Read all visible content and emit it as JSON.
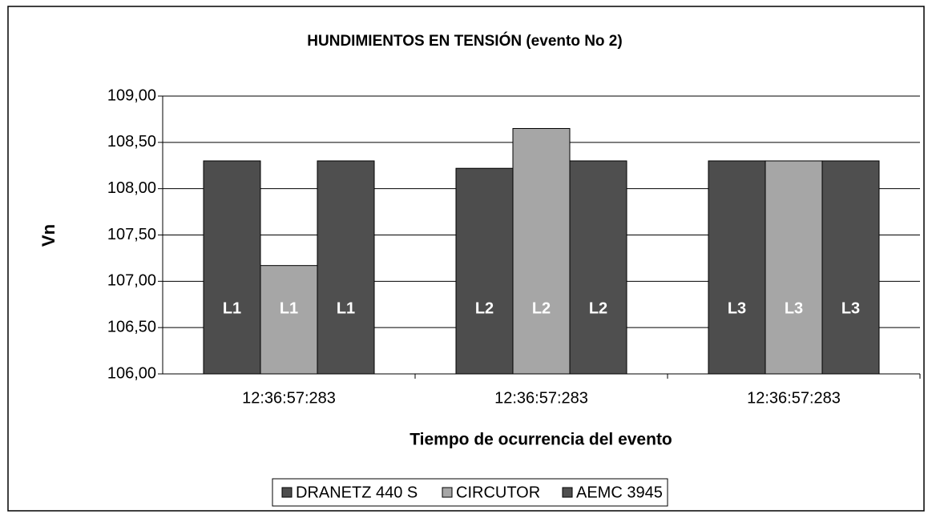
{
  "chart_data": {
    "type": "bar",
    "title": "HUNDIMIENTOS EN TENSIÓN  (evento No 2)",
    "y_label": "Vn",
    "x_label": "Tiempo de ocurrencia del evento",
    "categories": [
      "12:36:57:283",
      "12:36:57:283",
      "12:36:57:283"
    ],
    "series": [
      {
        "name": "DRANETZ 440 S",
        "color": "#4d4d4d",
        "values": [
          108.3,
          108.22,
          108.3
        ],
        "bar_labels": [
          "L1",
          "L2",
          "L3"
        ]
      },
      {
        "name": "CIRCUTOR",
        "color": "#a6a6a6",
        "values": [
          107.17,
          108.65,
          108.3
        ],
        "bar_labels": [
          "L1",
          "L2",
          "L3"
        ]
      },
      {
        "name": "AEMC 3945",
        "color": "#4f4f4f",
        "values": [
          108.3,
          108.3,
          108.3
        ],
        "bar_labels": [
          "L1",
          "L2",
          "L3"
        ]
      }
    ],
    "ylim": [
      106,
      109
    ],
    "yticks": [
      {
        "value": 106,
        "label": "106,00"
      },
      {
        "value": 106.5,
        "label": "106,50"
      },
      {
        "value": 107,
        "label": "107,00"
      },
      {
        "value": 107.5,
        "label": "107,50"
      },
      {
        "value": 108,
        "label": "108,00"
      },
      {
        "value": 108.5,
        "label": "108,50"
      },
      {
        "value": 109,
        "label": "109,00"
      }
    ],
    "grid": true,
    "legend": "bottom"
  }
}
